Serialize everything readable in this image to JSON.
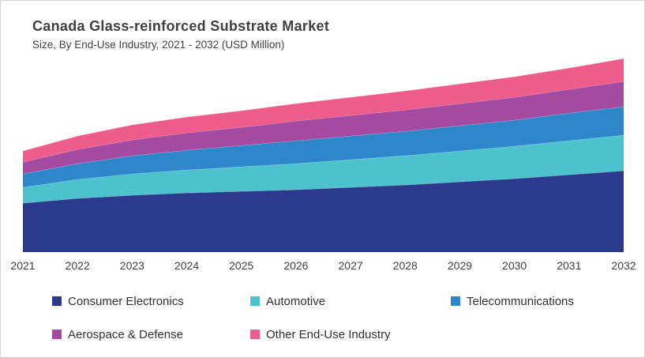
{
  "chart_data": {
    "type": "area",
    "stacked": true,
    "title": "Canada Glass-reinforced Substrate Market",
    "subtitle": "Size, By End-Use Industry, 2021 - 2032 (USD Million)",
    "unit": "USD Million",
    "y_axis_visible": false,
    "grid": false,
    "legend_position": "bottom",
    "ylim": [
      0,
      260
    ],
    "x": [
      2021,
      2022,
      2023,
      2024,
      2025,
      2026,
      2027,
      2028,
      2029,
      2030,
      2031,
      2032
    ],
    "series": [
      {
        "name": "Consumer Electronics",
        "color": "#2B3A8D",
        "values": [
          62,
          68,
          72,
          75,
          77,
          79,
          82,
          85,
          89,
          93,
          98,
          103
        ]
      },
      {
        "name": "Automotive",
        "color": "#4CC3CC",
        "values": [
          20,
          24,
          27,
          29,
          31,
          33,
          35,
          37,
          39,
          41,
          43,
          45
        ]
      },
      {
        "name": "Telecommunications",
        "color": "#2E86CB",
        "values": [
          17,
          20,
          23,
          25,
          27,
          29,
          30,
          31,
          32,
          33,
          35,
          36
        ]
      },
      {
        "name": "Aerospace & Defense",
        "color": "#A44AA0",
        "values": [
          15,
          18,
          20,
          22,
          23,
          25,
          26,
          27,
          28,
          29,
          30,
          32
        ]
      },
      {
        "name": "Other End-Use Industry",
        "color": "#EE5C8B",
        "values": [
          14,
          17,
          19,
          20,
          21,
          22,
          23,
          24,
          25,
          26,
          27,
          29
        ]
      }
    ]
  },
  "x_axis": {
    "labels": [
      "2021",
      "2022",
      "2023",
      "2024",
      "2025",
      "2026",
      "2027",
      "2028",
      "2029",
      "2030",
      "2031",
      "2032"
    ]
  },
  "legend": {
    "items": [
      {
        "label": "Consumer Electronics",
        "color": "#2B3A8D"
      },
      {
        "label": "Automotive",
        "color": "#4CC3CC"
      },
      {
        "label": "Telecommunications",
        "color": "#2E86CB"
      },
      {
        "label": "Aerospace & Defense",
        "color": "#A44AA0"
      },
      {
        "label": "Other End-Use Industry",
        "color": "#EE5C8B"
      }
    ]
  }
}
